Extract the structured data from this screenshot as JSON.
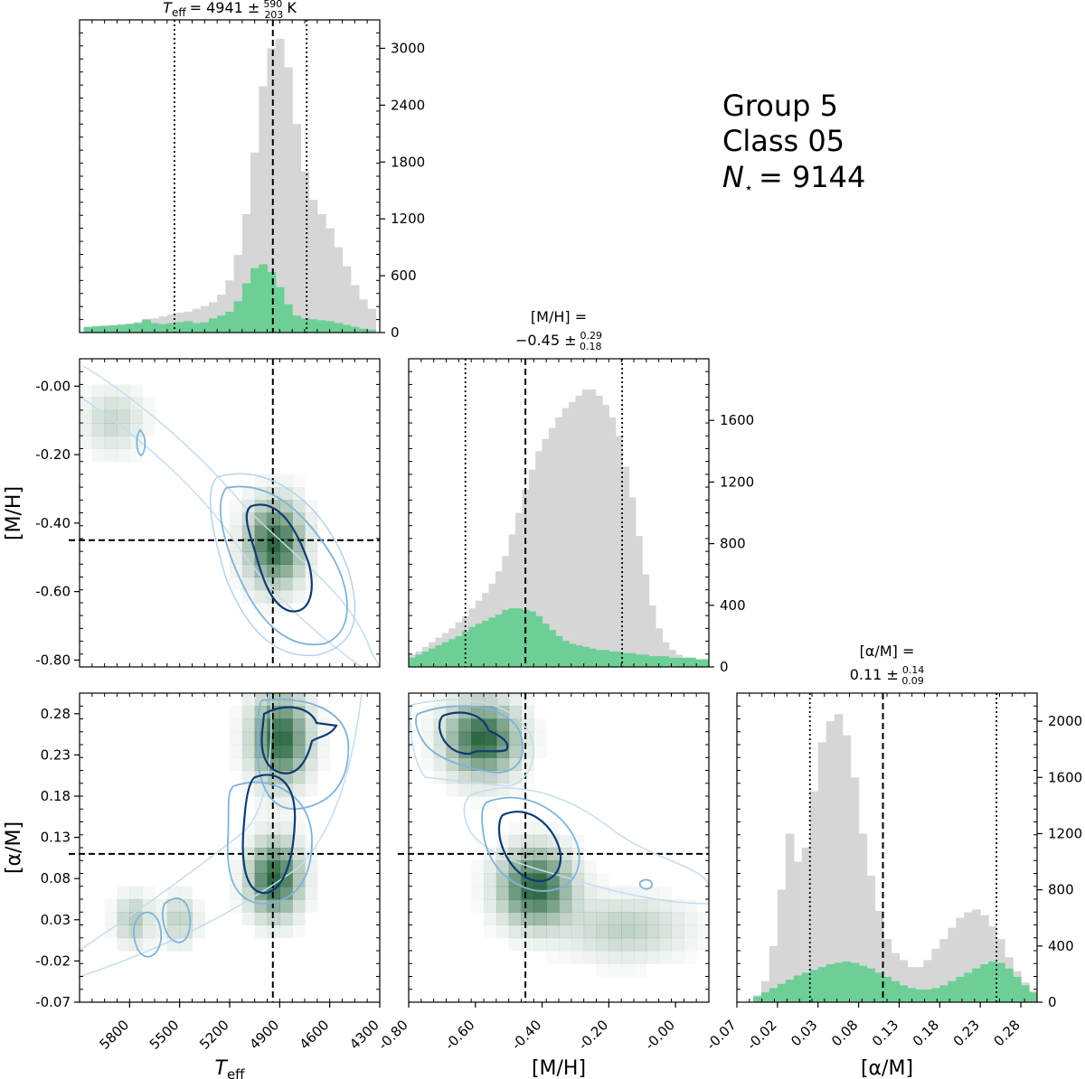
{
  "info": {
    "group": "Group 5",
    "class_label": "Class 05",
    "n_stars": "9144",
    "n_symbol": "N",
    "n_subscript": "⋆"
  },
  "titles": {
    "teff": {
      "symbol": "T",
      "subscript": "eff",
      "value": "= 4941 ±",
      "plus": "590",
      "minus": "203",
      "unit": "K"
    },
    "mh": {
      "line1": "[M/H] =",
      "value": "−0.45 ±",
      "plus": "0.29",
      "minus": "0.18"
    },
    "am": {
      "line1": "[α/M] =",
      "value": "0.11 ±",
      "plus": "0.14",
      "minus": "0.09"
    }
  },
  "axis_labels": {
    "teff": {
      "symbol": "T",
      "subscript": "eff"
    },
    "mh": "[M/H]",
    "am": "[α/M]"
  },
  "colors": {
    "all_hist": "#d6d6d6",
    "class_hist": "#6dcf96",
    "contour_inner": "#0d3b73",
    "contour_mid": "#7fb3da",
    "contour_outer": "#c6dcef",
    "density_dark": "#1e5e36"
  },
  "chart_data": [
    {
      "id": "hist_teff",
      "type": "bar",
      "title": "Teff = 4941 ± 590/203 K",
      "xlabel": "Teff",
      "xlim": [
        6100,
        4300
      ],
      "ylim": [
        0,
        3300
      ],
      "yticks": [
        "0",
        "600",
        "1200",
        "1800",
        "2400",
        "3000"
      ],
      "xticks": [
        "5800",
        "5500",
        "5200",
        "4900",
        "4600",
        "4300"
      ],
      "median": 4941,
      "p16": 5531,
      "p84": 4738,
      "series": [
        {
          "name": "all stars",
          "x": [
            6050,
            6000,
            5950,
            5900,
            5850,
            5800,
            5750,
            5700,
            5650,
            5600,
            5550,
            5500,
            5450,
            5400,
            5350,
            5300,
            5250,
            5200,
            5150,
            5100,
            5050,
            5000,
            4950,
            4900,
            4850,
            4800,
            4750,
            4700,
            4650,
            4600,
            4550,
            4500,
            4450,
            4400,
            4350
          ],
          "values": [
            60,
            70,
            75,
            80,
            90,
            95,
            110,
            130,
            150,
            170,
            190,
            210,
            220,
            250,
            280,
            320,
            400,
            550,
            820,
            1250,
            1900,
            2600,
            3000,
            3100,
            2800,
            2200,
            1700,
            1400,
            1250,
            1100,
            900,
            700,
            500,
            350,
            250
          ]
        },
        {
          "name": "class 05",
          "x": [
            6050,
            6000,
            5950,
            5900,
            5850,
            5800,
            5750,
            5700,
            5650,
            5600,
            5550,
            5500,
            5450,
            5400,
            5350,
            5300,
            5250,
            5200,
            5150,
            5100,
            5050,
            5000,
            4950,
            4900,
            4850,
            4800,
            4750,
            4700,
            4650,
            4600,
            4550,
            4500,
            4450,
            4400,
            4350
          ],
          "values": [
            60,
            65,
            70,
            75,
            80,
            90,
            100,
            140,
            100,
            90,
            100,
            110,
            120,
            100,
            110,
            150,
            180,
            220,
            330,
            520,
            680,
            720,
            640,
            480,
            300,
            180,
            150,
            140,
            130,
            120,
            100,
            80,
            60,
            40,
            30
          ]
        }
      ]
    },
    {
      "id": "hist_mh",
      "type": "bar",
      "title": "[M/H] = −0.45 ± 0.29/0.18",
      "xlabel": "[M/H]",
      "xlim": [
        -0.8,
        0.1
      ],
      "ylim": [
        0,
        2000
      ],
      "yticks": [
        "0",
        "400",
        "800",
        "1200",
        "1600"
      ],
      "xticks": [
        "-0.80",
        "-0.60",
        "-0.40",
        "-0.20",
        "-0.00"
      ],
      "median": -0.45,
      "p16": -0.63,
      "p84": -0.16,
      "series": [
        {
          "name": "all stars",
          "x": [
            -0.79,
            -0.77,
            -0.75,
            -0.73,
            -0.71,
            -0.69,
            -0.67,
            -0.65,
            -0.63,
            -0.61,
            -0.59,
            -0.57,
            -0.55,
            -0.53,
            -0.51,
            -0.49,
            -0.47,
            -0.45,
            -0.43,
            -0.41,
            -0.39,
            -0.37,
            -0.35,
            -0.33,
            -0.31,
            -0.29,
            -0.27,
            -0.25,
            -0.23,
            -0.21,
            -0.19,
            -0.17,
            -0.15,
            -0.13,
            -0.11,
            -0.09,
            -0.07,
            -0.05,
            -0.03,
            -0.01,
            0.01,
            0.03,
            0.05,
            0.07,
            0.09
          ],
          "values": [
            80,
            100,
            130,
            160,
            190,
            220,
            250,
            290,
            330,
            380,
            430,
            480,
            540,
            620,
            720,
            860,
            1000,
            1150,
            1280,
            1400,
            1480,
            1550,
            1620,
            1680,
            1720,
            1760,
            1800,
            1800,
            1760,
            1700,
            1620,
            1500,
            1300,
            1100,
            850,
            600,
            400,
            250,
            160,
            110,
            80,
            60,
            60,
            50,
            40
          ]
        },
        {
          "name": "class 05",
          "x": [
            -0.79,
            -0.77,
            -0.75,
            -0.73,
            -0.71,
            -0.69,
            -0.67,
            -0.65,
            -0.63,
            -0.61,
            -0.59,
            -0.57,
            -0.55,
            -0.53,
            -0.51,
            -0.49,
            -0.47,
            -0.45,
            -0.43,
            -0.41,
            -0.39,
            -0.37,
            -0.35,
            -0.33,
            -0.31,
            -0.29,
            -0.27,
            -0.25,
            -0.23,
            -0.21,
            -0.19,
            -0.17,
            -0.15,
            -0.13,
            -0.11,
            -0.09,
            -0.07,
            -0.05,
            -0.03,
            -0.01,
            0.01,
            0.03,
            0.05,
            0.07,
            0.09
          ],
          "values": [
            60,
            80,
            100,
            120,
            140,
            160,
            180,
            200,
            230,
            260,
            280,
            300,
            320,
            340,
            370,
            380,
            380,
            370,
            360,
            330,
            280,
            240,
            200,
            170,
            150,
            140,
            130,
            120,
            110,
            110,
            100,
            100,
            90,
            90,
            80,
            80,
            70,
            70,
            70,
            60,
            60,
            60,
            60,
            50,
            50
          ]
        }
      ]
    },
    {
      "id": "hist_am",
      "type": "bar",
      "title": "[α/M] = 0.11 ± 0.14/0.09",
      "xlabel": "[α/M]",
      "xlim": [
        -0.07,
        0.3
      ],
      "ylim": [
        0,
        2200
      ],
      "yticks": [
        "0",
        "400",
        "800",
        "1200",
        "1600",
        "2000"
      ],
      "xticks": [
        "-0.07",
        "-0.02",
        "0.03",
        "0.08",
        "0.13",
        "0.18",
        "0.23",
        "0.28"
      ],
      "median": 0.11,
      "p16": 0.02,
      "p84": 0.25,
      "series": [
        {
          "name": "all stars",
          "x": [
            -0.045,
            -0.035,
            -0.025,
            -0.015,
            -0.005,
            0.005,
            0.015,
            0.025,
            0.035,
            0.045,
            0.055,
            0.065,
            0.075,
            0.085,
            0.095,
            0.105,
            0.115,
            0.125,
            0.135,
            0.145,
            0.155,
            0.165,
            0.175,
            0.185,
            0.195,
            0.205,
            0.215,
            0.225,
            0.235,
            0.245,
            0.255,
            0.265,
            0.275,
            0.285,
            0.295
          ],
          "values": [
            50,
            150,
            400,
            800,
            1200,
            1000,
            1100,
            1500,
            1850,
            2000,
            2050,
            1900,
            1600,
            1200,
            900,
            650,
            450,
            350,
            300,
            250,
            250,
            300,
            380,
            450,
            530,
            600,
            640,
            660,
            620,
            540,
            450,
            320,
            220,
            140,
            80
          ]
        },
        {
          "name": "class 05",
          "x": [
            -0.045,
            -0.035,
            -0.025,
            -0.015,
            -0.005,
            0.005,
            0.015,
            0.025,
            0.035,
            0.045,
            0.055,
            0.065,
            0.075,
            0.085,
            0.095,
            0.105,
            0.115,
            0.125,
            0.135,
            0.145,
            0.155,
            0.165,
            0.175,
            0.185,
            0.195,
            0.205,
            0.215,
            0.225,
            0.235,
            0.245,
            0.255,
            0.265,
            0.275,
            0.285,
            0.295
          ],
          "values": [
            40,
            70,
            100,
            130,
            160,
            190,
            210,
            230,
            250,
            270,
            280,
            290,
            280,
            260,
            240,
            210,
            180,
            150,
            120,
            100,
            90,
            90,
            100,
            120,
            150,
            180,
            210,
            240,
            270,
            290,
            280,
            240,
            180,
            120,
            70
          ]
        }
      ]
    },
    {
      "id": "scatter_teff_mh",
      "type": "heatmap",
      "xlabel": "Teff",
      "ylabel": "[M/H]",
      "xlim": [
        6100,
        4300
      ],
      "ylim": [
        -0.82,
        0.08
      ],
      "xticks": [
        "5800",
        "5500",
        "5200",
        "4900",
        "4600",
        "4300"
      ],
      "yticks": [
        "-0.00",
        "-0.20",
        "-0.40",
        "-0.60",
        "-0.80"
      ],
      "median_x": 4941,
      "median_y": -0.45,
      "clusters": [
        {
          "x": 4930,
          "y": -0.46,
          "sx": 110,
          "sy": 0.08,
          "weight": 1.0
        },
        {
          "x": 5900,
          "y": -0.1,
          "sx": 120,
          "sy": 0.06,
          "weight": 0.25
        }
      ]
    },
    {
      "id": "scatter_teff_am",
      "type": "heatmap",
      "xlabel": "Teff",
      "ylabel": "[α/M]",
      "xlim": [
        6100,
        4300
      ],
      "ylim": [
        -0.07,
        0.305
      ],
      "xticks": [
        "5800",
        "5500",
        "5200",
        "4900",
        "4600",
        "4300"
      ],
      "yticks": [
        "0.28",
        "0.23",
        "0.18",
        "0.13",
        "0.08",
        "0.03",
        "-0.02",
        "-0.07"
      ],
      "median_x": 4941,
      "median_y": 0.11,
      "clusters": [
        {
          "x": 4900,
          "y": 0.25,
          "sx": 110,
          "sy": 0.035,
          "weight": 1.0
        },
        {
          "x": 4930,
          "y": 0.08,
          "sx": 100,
          "sy": 0.03,
          "weight": 1.0
        },
        {
          "x": 5780,
          "y": 0.03,
          "sx": 70,
          "sy": 0.02,
          "weight": 0.35
        },
        {
          "x": 5500,
          "y": 0.03,
          "sx": 70,
          "sy": 0.02,
          "weight": 0.3
        }
      ]
    },
    {
      "id": "scatter_mh_am",
      "type": "heatmap",
      "xlabel": "[M/H]",
      "ylabel": "[α/M]",
      "xlim": [
        -0.8,
        0.1
      ],
      "ylim": [
        -0.07,
        0.305
      ],
      "xticks": [
        "-0.80",
        "-0.60",
        "-0.40",
        "-0.20",
        "-0.00"
      ],
      "median_x": -0.45,
      "median_y": 0.11,
      "clusters": [
        {
          "x": -0.58,
          "y": 0.25,
          "sx": 0.07,
          "sy": 0.03,
          "weight": 1.0
        },
        {
          "x": -0.42,
          "y": 0.07,
          "sx": 0.07,
          "sy": 0.03,
          "weight": 1.0
        },
        {
          "x": -0.15,
          "y": 0.02,
          "sx": 0.12,
          "sy": 0.025,
          "weight": 0.3
        }
      ]
    }
  ]
}
